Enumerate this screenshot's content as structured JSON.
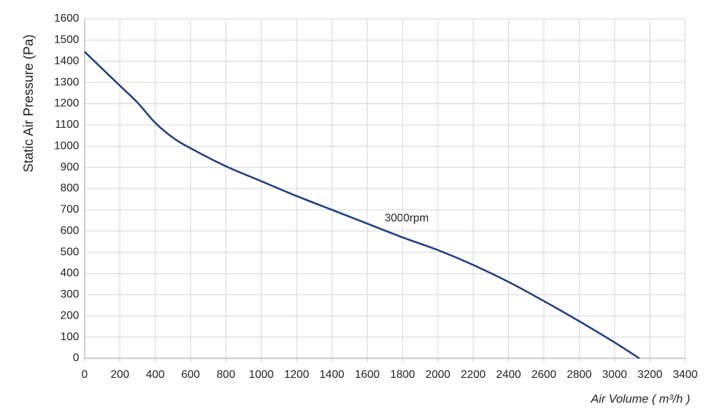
{
  "chart_data": {
    "type": "line",
    "x_label": "Air Volume ( m³/h )",
    "y_label": "Static Air Pressure  (Pa)",
    "annotation": "3000rpm",
    "x": [
      0,
      100,
      200,
      300,
      400,
      500,
      600,
      800,
      1000,
      1200,
      1400,
      1600,
      1800,
      2000,
      2200,
      2400,
      2600,
      2800,
      3000,
      3140
    ],
    "series": [
      {
        "name": "3000rpm",
        "color": "#1c3f82",
        "values": [
          1445,
          1365,
          1285,
          1205,
          1110,
          1040,
          990,
          905,
          835,
          765,
          700,
          635,
          570,
          510,
          440,
          360,
          270,
          175,
          75,
          0
        ]
      }
    ],
    "xlim": [
      0,
      3400
    ],
    "xticks": [
      0,
      200,
      400,
      600,
      800,
      1000,
      1200,
      1400,
      1600,
      1800,
      2000,
      2200,
      2400,
      2600,
      2800,
      3000,
      3200,
      3400
    ],
    "ylim": [
      0,
      1600
    ],
    "yticks": [
      0,
      100,
      200,
      300,
      400,
      500,
      600,
      700,
      800,
      900,
      1000,
      1100,
      1200,
      1300,
      1400,
      1500,
      1600
    ],
    "grid": true
  }
}
